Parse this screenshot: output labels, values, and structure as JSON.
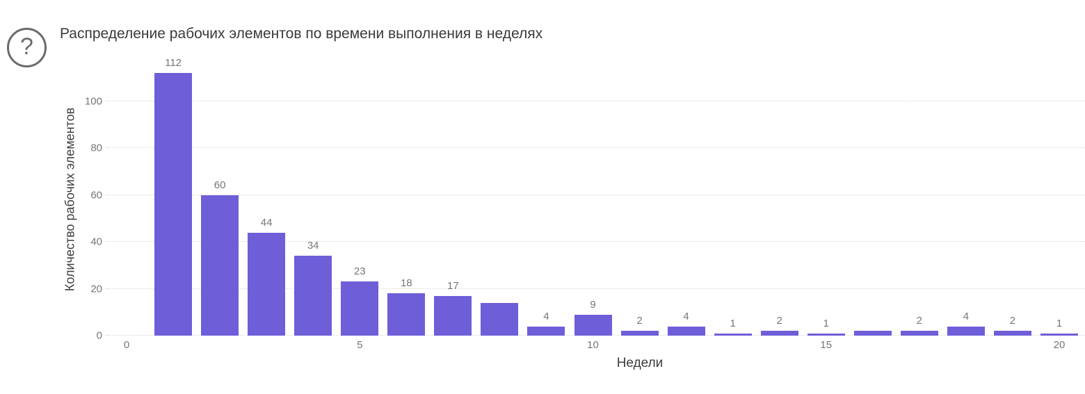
{
  "header": {
    "title": "Распределение рабочих элементов по времени выполнения в неделях",
    "help_glyph": "?"
  },
  "chart_data": {
    "type": "bar",
    "title": "Распределение рабочих элементов по времени выполнения в неделях",
    "xlabel": "Недели",
    "ylabel": "Количество рабочих элементов",
    "x": [
      1,
      2,
      3,
      4,
      5,
      6,
      7,
      8,
      9,
      10,
      11,
      12,
      13,
      14,
      15,
      16,
      17,
      18,
      19,
      20
    ],
    "values": [
      112,
      60,
      44,
      34,
      23,
      18,
      17,
      14,
      4,
      9,
      2,
      4,
      1,
      2,
      1,
      2,
      2,
      4,
      2,
      1
    ],
    "bar_labels": [
      "112",
      "60",
      "44",
      "34",
      "23",
      "18",
      "17",
      "",
      "4",
      "9",
      "2",
      "4",
      "1",
      "2",
      "1",
      "",
      "2",
      "4",
      "2",
      "1"
    ],
    "y_ticks": [
      0,
      20,
      40,
      60,
      80,
      100
    ],
    "x_ticks": [
      0,
      5,
      10,
      15,
      20
    ],
    "ylim": [
      0,
      118
    ],
    "grid": true,
    "legend": "none",
    "bar_color": "#6e5ed8",
    "grid_color": "#d9d9d9",
    "tick_color": "#767676"
  }
}
